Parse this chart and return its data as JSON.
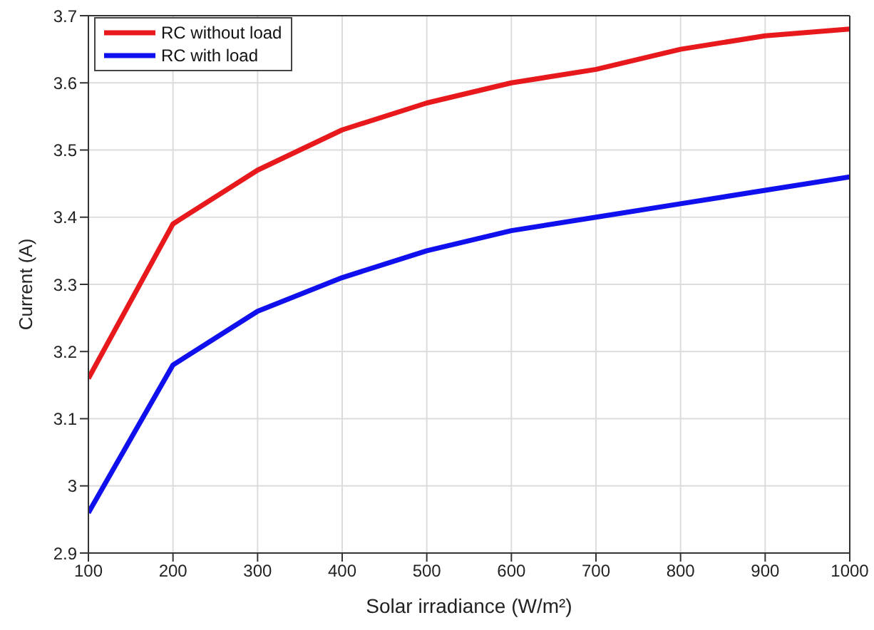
{
  "chart_data": {
    "type": "line",
    "xlabel": "Solar irradiance (W/m²)",
    "ylabel": "Current (A)",
    "x": [
      100,
      200,
      300,
      400,
      500,
      600,
      700,
      800,
      900,
      1000
    ],
    "series": [
      {
        "name": "RC without load",
        "color": "#e8191c",
        "values": [
          3.16,
          3.39,
          3.47,
          3.53,
          3.57,
          3.6,
          3.62,
          3.65,
          3.67,
          3.68
        ]
      },
      {
        "name": "RC with load",
        "color": "#1010ee",
        "values": [
          2.96,
          3.18,
          3.26,
          3.31,
          3.35,
          3.38,
          3.4,
          3.42,
          3.44,
          3.46
        ]
      }
    ],
    "xlim": [
      100,
      1000
    ],
    "xticks": [
      100,
      200,
      300,
      400,
      500,
      600,
      700,
      800,
      900,
      1000
    ],
    "ylim": [
      2.9,
      3.7
    ],
    "yticks": [
      2.9,
      3,
      3.1,
      3.2,
      3.3,
      3.4,
      3.5,
      3.6,
      3.7
    ],
    "grid": true,
    "legend": "top left",
    "marker": "none",
    "line_style": "solid"
  }
}
